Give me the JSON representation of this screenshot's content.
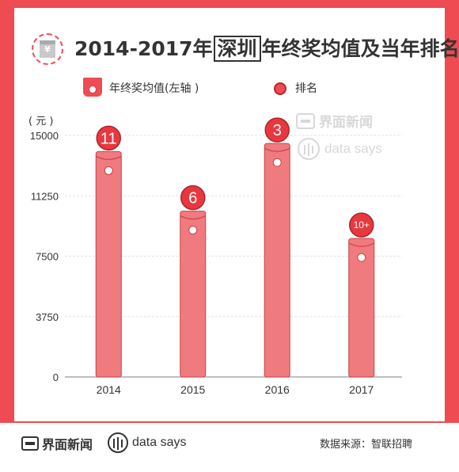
{
  "title": {
    "prefix": "2014-2017年",
    "highlight": "深圳",
    "suffix": "年终奖均值及当年排名",
    "icon": "money-envelope-icon",
    "icon_glyph": "¥"
  },
  "legend": {
    "bar_label": "年终奖均值(左轴 )",
    "dot_label": "排名"
  },
  "unit": "( 元 )",
  "colors": {
    "frame": "#ee4b52",
    "bar": "#f07b7f",
    "bar_stroke": "#c94047",
    "rank_fill": "#e8383f",
    "rank_stroke": "#a9262c"
  },
  "chart_data": {
    "type": "bar",
    "categories": [
      "2014",
      "2015",
      "2016",
      "2017"
    ],
    "series": [
      {
        "name": "年终奖均值(左轴 )",
        "values": [
          14000,
          10300,
          14500,
          8600
        ]
      },
      {
        "name": "排名",
        "labels": [
          "11",
          "6",
          "3",
          "10+"
        ]
      }
    ],
    "ylim": [
      0,
      15000
    ],
    "yticks": [
      "0",
      "3750",
      "7500",
      "11250",
      "15000"
    ],
    "grid": true
  },
  "watermark": {
    "brand": "界面新闻",
    "tagline": "data says"
  },
  "footer": {
    "brand": "界面新闻",
    "tagline": "data says",
    "source": "数据来源：智联招聘"
  }
}
